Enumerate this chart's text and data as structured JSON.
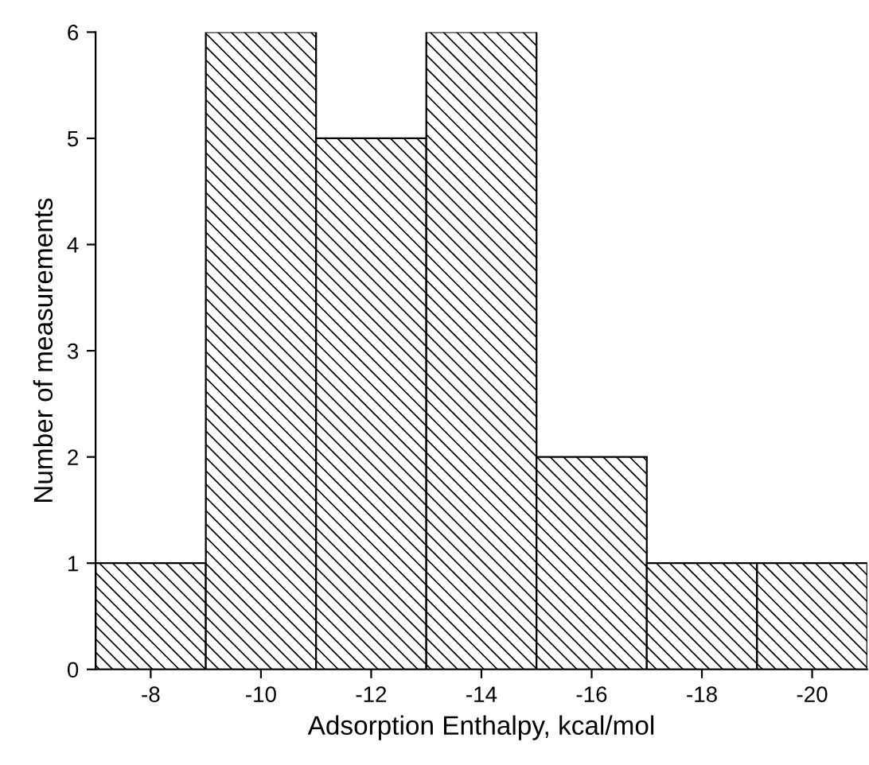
{
  "chart_data": {
    "type": "histogram",
    "xlabel": "Adsorption Enthalpy, kcal/mol",
    "ylabel": "Number of measurements",
    "bins": [
      -7,
      -9,
      -11,
      -13,
      -15,
      -17,
      -19,
      -21
    ],
    "values": [
      1,
      6,
      5,
      6,
      2,
      1,
      1
    ],
    "color": "#000000",
    "xlim": [
      -7,
      -21
    ],
    "xticks": [
      -8,
      -10,
      -12,
      -14,
      -16,
      -18,
      -20
    ],
    "ylim": [
      0,
      6
    ],
    "yticks": [
      0,
      1,
      2,
      3,
      4,
      5,
      6
    ],
    "grid": false,
    "legend": false
  }
}
